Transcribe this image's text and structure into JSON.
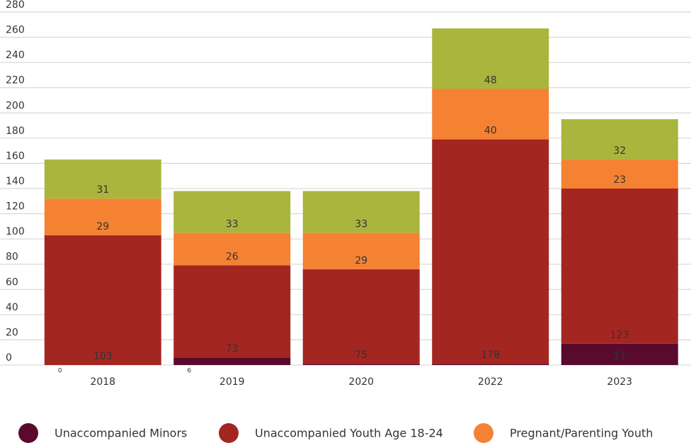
{
  "chart_data": {
    "type": "stacked_bar",
    "categories": [
      "2018",
      "2019",
      "2020",
      "2022",
      "2023"
    ],
    "series": [
      {
        "name": "Unaccompanied Minors",
        "color": "#5a0a2d",
        "values": [
          0,
          6,
          1,
          1,
          17
        ],
        "value_labels": [
          "0",
          "6",
          null,
          null,
          "17"
        ]
      },
      {
        "name": "Unaccompanied Youth Age 18-24",
        "color": "#a42621",
        "values": [
          103,
          73,
          75,
          178,
          123
        ]
      },
      {
        "name": "Pregnant/Parenting Youth",
        "color": "#f58233",
        "values": [
          29,
          26,
          29,
          40,
          23
        ]
      },
      {
        "color": "#aab53e",
        "values": [
          31,
          33,
          33,
          48,
          32
        ]
      }
    ],
    "ylim": [
      0,
      280
    ],
    "yticks": [
      0,
      20,
      40,
      60,
      80,
      100,
      120,
      140,
      160,
      180,
      200,
      220,
      240,
      260,
      280
    ],
    "grid": true
  }
}
